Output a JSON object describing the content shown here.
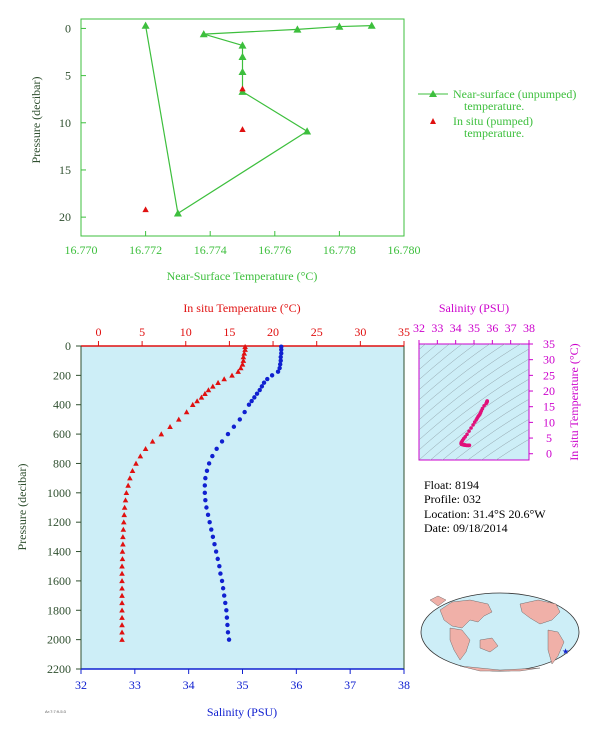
{
  "colors": {
    "green": "#3dbf3d",
    "red": "#e01010",
    "blue": "#1020d0",
    "magenta": "#cc00cc",
    "plot_bg": "#cdeef7",
    "dark_label": "#2f4f2f",
    "land": "#f0b0a8",
    "ocean": "#cdeef7"
  },
  "chart_data": [
    {
      "type": "line",
      "xlabel": "Near-Surface Temperature (°C)",
      "ylabel": "Pressure (decibar)",
      "xlim": [
        16.77,
        16.78
      ],
      "ylim": [
        22,
        -1
      ],
      "xticks": [
        "16.770",
        "16.772",
        "16.774",
        "16.776",
        "16.778",
        "16.780"
      ],
      "yticks": [
        "0",
        "5",
        "10",
        "15",
        "20"
      ],
      "series": [
        {
          "name": "Near-surface (unpumped) temperature.",
          "marker": "triangle",
          "x": [
            16.779,
            16.778,
            16.7767,
            16.7738,
            16.775,
            16.775,
            16.775,
            16.775,
            16.777,
            16.773,
            16.772
          ],
          "y": [
            -0.3,
            -0.2,
            0.1,
            0.6,
            1.8,
            3.0,
            4.6,
            6.7,
            10.9,
            19.6,
            -0.3
          ]
        },
        {
          "name": "In situ (pumped) temperature.",
          "marker": "triangle",
          "x": [
            16.775,
            16.775,
            16.772
          ],
          "y": [
            6.4,
            10.7,
            19.2
          ]
        }
      ],
      "legend": {
        "position": "right",
        "line1": "Near-surface (unpumped)",
        "line2": "temperature.",
        "line3": "In situ (pumped)",
        "line4": "temperature."
      }
    },
    {
      "type": "scatter",
      "ylabel": "Pressure (decibar)",
      "ylim": [
        2200,
        0
      ],
      "yticks": [
        "0",
        "200",
        "400",
        "600",
        "800",
        "1000",
        "1200",
        "1400",
        "1600",
        "1800",
        "2000",
        "2200"
      ],
      "top_axis": {
        "label": "In situ Temperature (°C)",
        "xlim": [
          -2,
          35
        ],
        "ticks": [
          "0",
          "5",
          "10",
          "15",
          "20",
          "25",
          "30",
          "35"
        ]
      },
      "bottom_axis": {
        "label": "Salinity (PSU)",
        "xlim": [
          32,
          38
        ],
        "ticks": [
          "32",
          "33",
          "34",
          "35",
          "36",
          "37",
          "38"
        ]
      },
      "series": [
        {
          "name": "In situ Temperature (°C)",
          "axis": "top",
          "marker": "triangle",
          "points": [
            [
              16.8,
              5
            ],
            [
              16.8,
              25
            ],
            [
              16.7,
              50
            ],
            [
              16.6,
              75
            ],
            [
              16.6,
              100
            ],
            [
              16.5,
              125
            ],
            [
              16.3,
              150
            ],
            [
              16.0,
              175
            ],
            [
              15.3,
              200
            ],
            [
              14.4,
              225
            ],
            [
              13.7,
              250
            ],
            [
              13.1,
              275
            ],
            [
              12.6,
              300
            ],
            [
              12.2,
              325
            ],
            [
              11.8,
              350
            ],
            [
              11.3,
              375
            ],
            [
              10.8,
              400
            ],
            [
              10.1,
              450
            ],
            [
              9.2,
              500
            ],
            [
              8.2,
              550
            ],
            [
              7.2,
              600
            ],
            [
              6.2,
              650
            ],
            [
              5.4,
              700
            ],
            [
              4.8,
              750
            ],
            [
              4.3,
              800
            ],
            [
              3.9,
              850
            ],
            [
              3.6,
              900
            ],
            [
              3.4,
              950
            ],
            [
              3.2,
              1000
            ],
            [
              3.1,
              1050
            ],
            [
              3.0,
              1100
            ],
            [
              2.95,
              1150
            ],
            [
              2.9,
              1200
            ],
            [
              2.85,
              1250
            ],
            [
              2.8,
              1300
            ],
            [
              2.8,
              1350
            ],
            [
              2.75,
              1400
            ],
            [
              2.75,
              1450
            ],
            [
              2.7,
              1500
            ],
            [
              2.7,
              1550
            ],
            [
              2.7,
              1600
            ],
            [
              2.7,
              1650
            ],
            [
              2.7,
              1700
            ],
            [
              2.7,
              1750
            ],
            [
              2.7,
              1800
            ],
            [
              2.7,
              1850
            ],
            [
              2.7,
              1900
            ],
            [
              2.7,
              1950
            ],
            [
              2.7,
              2000
            ]
          ]
        },
        {
          "name": "Salinity (PSU)",
          "axis": "bottom",
          "marker": "circle",
          "points": [
            [
              35.72,
              5
            ],
            [
              35.72,
              25
            ],
            [
              35.72,
              50
            ],
            [
              35.71,
              75
            ],
            [
              35.71,
              100
            ],
            [
              35.7,
              125
            ],
            [
              35.69,
              150
            ],
            [
              35.66,
              175
            ],
            [
              35.55,
              200
            ],
            [
              35.46,
              225
            ],
            [
              35.4,
              250
            ],
            [
              35.36,
              275
            ],
            [
              35.32,
              300
            ],
            [
              35.27,
              325
            ],
            [
              35.22,
              350
            ],
            [
              35.17,
              375
            ],
            [
              35.12,
              400
            ],
            [
              35.04,
              450
            ],
            [
              34.95,
              500
            ],
            [
              34.84,
              550
            ],
            [
              34.73,
              600
            ],
            [
              34.62,
              650
            ],
            [
              34.52,
              700
            ],
            [
              34.44,
              750
            ],
            [
              34.38,
              800
            ],
            [
              34.34,
              850
            ],
            [
              34.31,
              900
            ],
            [
              34.3,
              950
            ],
            [
              34.3,
              1000
            ],
            [
              34.31,
              1050
            ],
            [
              34.33,
              1100
            ],
            [
              34.36,
              1150
            ],
            [
              34.39,
              1200
            ],
            [
              34.42,
              1250
            ],
            [
              34.45,
              1300
            ],
            [
              34.48,
              1350
            ],
            [
              34.51,
              1400
            ],
            [
              34.54,
              1450
            ],
            [
              34.57,
              1500
            ],
            [
              34.59,
              1550
            ],
            [
              34.62,
              1600
            ],
            [
              34.64,
              1650
            ],
            [
              34.66,
              1700
            ],
            [
              34.68,
              1750
            ],
            [
              34.7,
              1800
            ],
            [
              34.71,
              1850
            ],
            [
              34.72,
              1900
            ],
            [
              34.73,
              1950
            ],
            [
              34.75,
              2000
            ]
          ]
        }
      ]
    },
    {
      "type": "scatter",
      "title": "Salinity (PSU)",
      "ylabel": "In situ Temperature (°C)",
      "xlim": [
        32,
        38
      ],
      "ylim": [
        -2,
        35
      ],
      "xticks": [
        "32",
        "33",
        "34",
        "35",
        "36",
        "37",
        "38"
      ],
      "yticks": [
        "0",
        "5",
        "10",
        "15",
        "20",
        "25",
        "30",
        "35"
      ]
    }
  ],
  "float_info": {
    "float": "Float:  8194",
    "profile": "Profile:  032",
    "location": "Location:  31.4°S  20.6°W",
    "date": "Date:  09/18/2014"
  },
  "footer_tag": "Ar:7:7:9-5:3"
}
